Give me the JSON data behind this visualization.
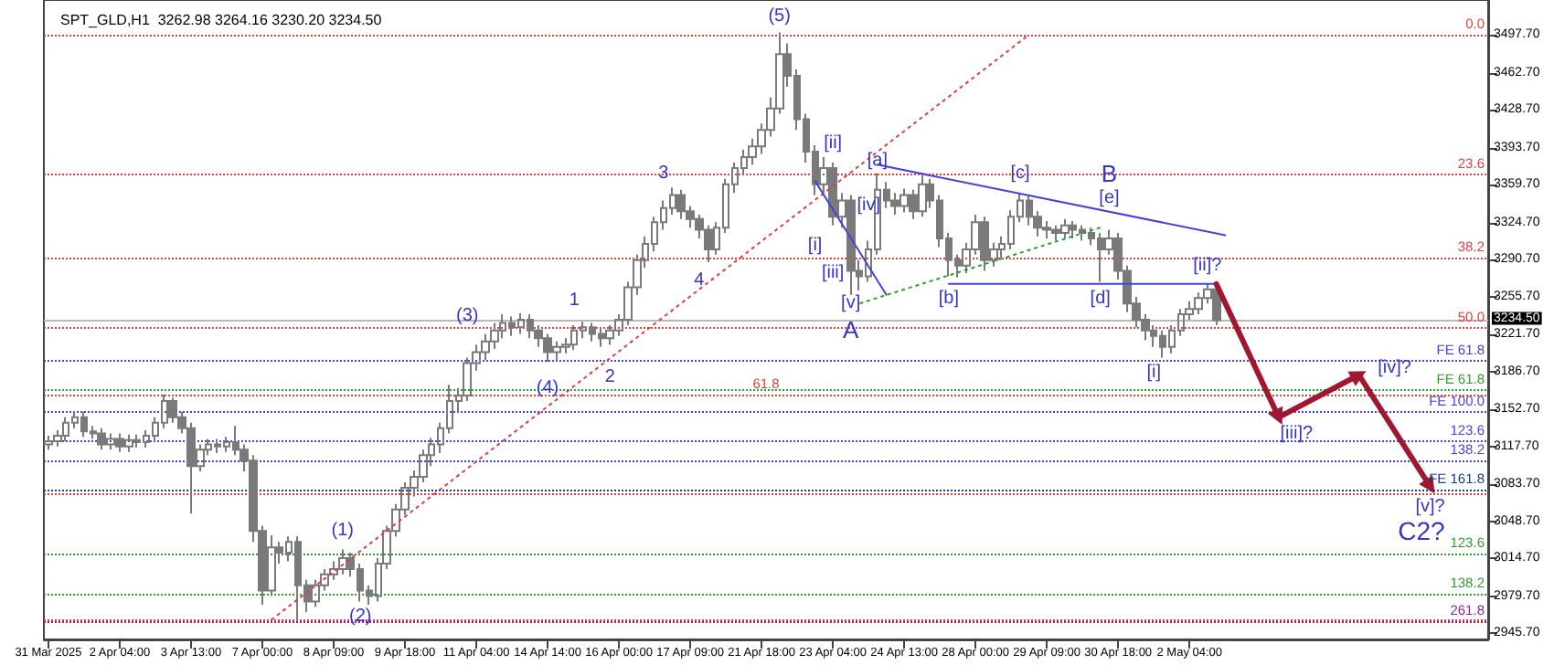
{
  "chart_data": {
    "type": "candlestick",
    "title": "SPT_GLD,H1  3262.98 3264.16 3230.20 3234.50",
    "color": "#7a7a7a",
    "categories": [
      "31 Mar 2025",
      null,
      null,
      null,
      null,
      null,
      null,
      null,
      "2 Apr 04:00",
      null,
      null,
      null,
      null,
      null,
      null,
      null,
      "3 Apr 13:00",
      null,
      null,
      null,
      null,
      null,
      null,
      null,
      "7 Apr 00:00",
      null,
      null,
      null,
      null,
      null,
      null,
      null,
      "8 Apr 09:00",
      null,
      null,
      null,
      null,
      null,
      null,
      null,
      "9 Apr 18:00",
      null,
      null,
      null,
      null,
      null,
      null,
      null,
      "11 Apr 04:00",
      null,
      null,
      null,
      null,
      null,
      null,
      null,
      "14 Apr 14:00",
      null,
      null,
      null,
      null,
      null,
      null,
      null,
      "16 Apr 00:00",
      null,
      null,
      null,
      null,
      null,
      null,
      null,
      "17 Apr 09:00",
      null,
      null,
      null,
      null,
      null,
      null,
      null,
      "21 Apr 18:00",
      null,
      null,
      null,
      null,
      null,
      null,
      null,
      "23 Apr 04:00",
      null,
      null,
      null,
      null,
      null,
      null,
      null,
      "24 Apr 13:00",
      null,
      null,
      null,
      null,
      null,
      null,
      null,
      "28 Apr 00:00",
      null,
      null,
      null,
      null,
      null,
      null,
      null,
      "29 Apr 09:00",
      null,
      null,
      null,
      null,
      null,
      null,
      null,
      "30 Apr 18:00",
      null,
      null,
      null,
      null,
      null,
      null,
      null,
      "2 May 04:00",
      null,
      null,
      null,
      null,
      null,
      null,
      null,
      null,
      null,
      null,
      null,
      null,
      null,
      null,
      null,
      null,
      null,
      null,
      null,
      null,
      null,
      null,
      null,
      null,
      null,
      null,
      null,
      null,
      null,
      null,
      null,
      null,
      null
    ],
    "ohlc": [
      [
        3120,
        3128,
        3115,
        3123
      ],
      [
        3123,
        3133,
        3118,
        3128
      ],
      [
        3128,
        3145,
        3123,
        3140
      ],
      [
        3140,
        3150,
        3135,
        3145
      ],
      [
        3145,
        3150,
        3127,
        3132
      ],
      [
        3132,
        3137,
        3125,
        3130
      ],
      [
        3130,
        3135,
        3115,
        3120
      ],
      [
        3120,
        3130,
        3115,
        3125
      ],
      [
        3125,
        3130,
        3113,
        3118
      ],
      [
        3118,
        3129,
        3113,
        3124
      ],
      [
        3124,
        3129,
        3117,
        3122
      ],
      [
        3122,
        3133,
        3117,
        3128
      ],
      [
        3128,
        3145,
        3123,
        3140
      ],
      [
        3140,
        3166,
        3135,
        3160
      ],
      [
        3160,
        3163,
        3140,
        3145
      ],
      [
        3145,
        3150,
        3130,
        3135
      ],
      [
        3135,
        3140,
        3056,
        3100
      ],
      [
        3100,
        3120,
        3095,
        3115
      ],
      [
        3115,
        3125,
        3110,
        3120
      ],
      [
        3120,
        3125,
        3112,
        3118
      ],
      [
        3118,
        3127,
        3113,
        3122
      ],
      [
        3122,
        3137,
        3110,
        3115
      ],
      [
        3115,
        3120,
        3095,
        3105
      ],
      [
        3105,
        3110,
        3030,
        3040
      ],
      [
        3040,
        3045,
        2972,
        2985
      ],
      [
        2985,
        3036,
        2980,
        3025
      ],
      [
        3025,
        3030,
        3010,
        3020
      ],
      [
        3020,
        3035,
        3012,
        3030
      ],
      [
        3030,
        3035,
        2957,
        2990
      ],
      [
        2990,
        2995,
        2965,
        2975
      ],
      [
        2975,
        2995,
        2970,
        2990
      ],
      [
        2990,
        3005,
        2985,
        3000
      ],
      [
        3000,
        3012,
        2995,
        3005
      ],
      [
        3005,
        3023,
        3000,
        3015
      ],
      [
        3015,
        3020,
        2998,
        3005
      ],
      [
        3005,
        3010,
        2975,
        2985
      ],
      [
        2985,
        2990,
        2972,
        2980
      ],
      [
        2980,
        3015,
        2975,
        3010
      ],
      [
        3010,
        3045,
        3005,
        3040
      ],
      [
        3040,
        3065,
        3035,
        3060
      ],
      [
        3060,
        3085,
        3055,
        3080
      ],
      [
        3080,
        3096,
        3072,
        3090
      ],
      [
        3090,
        3115,
        3085,
        3110
      ],
      [
        3110,
        3126,
        3100,
        3120
      ],
      [
        3120,
        3140,
        3112,
        3135
      ],
      [
        3135,
        3175,
        3130,
        3160
      ],
      [
        3160,
        3172,
        3150,
        3165
      ],
      [
        3165,
        3200,
        3160,
        3195
      ],
      [
        3195,
        3212,
        3188,
        3205
      ],
      [
        3205,
        3222,
        3198,
        3215
      ],
      [
        3215,
        3232,
        3208,
        3225
      ],
      [
        3225,
        3240,
        3218,
        3232
      ],
      [
        3232,
        3238,
        3220,
        3228
      ],
      [
        3228,
        3241,
        3222,
        3235
      ],
      [
        3235,
        3240,
        3218,
        3225
      ],
      [
        3225,
        3230,
        3210,
        3218
      ],
      [
        3218,
        3222,
        3196,
        3205
      ],
      [
        3205,
        3215,
        3198,
        3210
      ],
      [
        3210,
        3218,
        3204,
        3212
      ],
      [
        3212,
        3230,
        3207,
        3225
      ],
      [
        3225,
        3233,
        3218,
        3228
      ],
      [
        3228,
        3232,
        3215,
        3222
      ],
      [
        3222,
        3228,
        3210,
        3218
      ],
      [
        3218,
        3230,
        3212,
        3225
      ],
      [
        3225,
        3240,
        3220,
        3235
      ],
      [
        3235,
        3270,
        3230,
        3265
      ],
      [
        3265,
        3295,
        3258,
        3290
      ],
      [
        3290,
        3312,
        3283,
        3305
      ],
      [
        3305,
        3330,
        3298,
        3325
      ],
      [
        3325,
        3345,
        3318,
        3338
      ],
      [
        3338,
        3357,
        3332,
        3350
      ],
      [
        3350,
        3355,
        3328,
        3335
      ],
      [
        3335,
        3340,
        3320,
        3328
      ],
      [
        3328,
        3332,
        3310,
        3318
      ],
      [
        3318,
        3322,
        3288,
        3300
      ],
      [
        3300,
        3325,
        3295,
        3320
      ],
      [
        3320,
        3365,
        3315,
        3360
      ],
      [
        3360,
        3380,
        3352,
        3375
      ],
      [
        3375,
        3392,
        3368,
        3385
      ],
      [
        3385,
        3402,
        3378,
        3395
      ],
      [
        3395,
        3416,
        3388,
        3410
      ],
      [
        3410,
        3440,
        3404,
        3430
      ],
      [
        3430,
        3500,
        3425,
        3480
      ],
      [
        3480,
        3490,
        3450,
        3460
      ],
      [
        3460,
        3466,
        3410,
        3420
      ],
      [
        3420,
        3425,
        3380,
        3390
      ],
      [
        3390,
        3396,
        3350,
        3360
      ],
      [
        3360,
        3385,
        3352,
        3375
      ],
      [
        3375,
        3380,
        3322,
        3330
      ],
      [
        3330,
        3352,
        3320,
        3345
      ],
      [
        3345,
        3350,
        3258,
        3280
      ],
      [
        3280,
        3290,
        3262,
        3275
      ],
      [
        3275,
        3308,
        3270,
        3300
      ],
      [
        3300,
        3370,
        3295,
        3355
      ],
      [
        3355,
        3362,
        3338,
        3345
      ],
      [
        3345,
        3352,
        3332,
        3340
      ],
      [
        3340,
        3356,
        3334,
        3350
      ],
      [
        3350,
        3355,
        3328,
        3335
      ],
      [
        3335,
        3368,
        3330,
        3360
      ],
      [
        3360,
        3365,
        3338,
        3345
      ],
      [
        3345,
        3350,
        3302,
        3310
      ],
      [
        3310,
        3315,
        3275,
        3290
      ],
      [
        3290,
        3295,
        3274,
        3285
      ],
      [
        3285,
        3306,
        3278,
        3300
      ],
      [
        3300,
        3332,
        3295,
        3325
      ],
      [
        3325,
        3330,
        3280,
        3290
      ],
      [
        3290,
        3306,
        3284,
        3300
      ],
      [
        3300,
        3312,
        3292,
        3305
      ],
      [
        3305,
        3336,
        3300,
        3330
      ],
      [
        3330,
        3352,
        3325,
        3345
      ],
      [
        3345,
        3350,
        3322,
        3330
      ],
      [
        3330,
        3335,
        3312,
        3320
      ],
      [
        3320,
        3326,
        3310,
        3318
      ],
      [
        3318,
        3322,
        3308,
        3315
      ],
      [
        3315,
        3328,
        3310,
        3322
      ],
      [
        3322,
        3326,
        3310,
        3318
      ],
      [
        3318,
        3322,
        3308,
        3315
      ],
      [
        3315,
        3320,
        3304,
        3310
      ],
      [
        3310,
        3315,
        3270,
        3300
      ],
      [
        3300,
        3318,
        3295,
        3310
      ],
      [
        3310,
        3315,
        3272,
        3280
      ],
      [
        3280,
        3285,
        3242,
        3250
      ],
      [
        3250,
        3256,
        3228,
        3235
      ],
      [
        3235,
        3240,
        3216,
        3225
      ],
      [
        3225,
        3230,
        3210,
        3220
      ],
      [
        3220,
        3225,
        3200,
        3210
      ],
      [
        3210,
        3230,
        3204,
        3225
      ],
      [
        3225,
        3245,
        3220,
        3240
      ],
      [
        3240,
        3252,
        3235,
        3245
      ],
      [
        3245,
        3260,
        3240,
        3255
      ],
      [
        3255,
        3268,
        3250,
        3262.98
      ],
      [
        3262.98,
        3264.16,
        3230.2,
        3234.5
      ],
      null,
      null,
      null,
      null,
      null,
      null,
      null,
      null,
      null,
      null,
      null,
      null,
      null,
      null,
      null,
      null,
      null,
      null,
      null,
      null,
      null,
      null,
      null,
      null,
      null,
      null,
      null,
      null,
      null,
      null
    ],
    "series": [
      {
        "type": "line",
        "color": "#e04040",
        "line_style": "dotted",
        "marker": "none",
        "values": [
          null,
          null,
          null,
          null,
          null,
          null,
          null,
          null,
          null,
          null,
          null,
          null,
          null,
          null,
          null,
          null,
          null,
          null,
          null,
          null,
          null,
          null,
          null,
          null,
          null,
          2958,
          null,
          null,
          null,
          null,
          null,
          null,
          null,
          null,
          null,
          null,
          null,
          null,
          null,
          null,
          null,
          null,
          null,
          null,
          null,
          null,
          null,
          null,
          null,
          null,
          null,
          null,
          null,
          null,
          null,
          null,
          null,
          null,
          null,
          null,
          null,
          null,
          null,
          null,
          null,
          null,
          null,
          null,
          null,
          null,
          null,
          null,
          null,
          null,
          null,
          null,
          null,
          null,
          null,
          null,
          null,
          null,
          null,
          null,
          null,
          null,
          null,
          null,
          null,
          null,
          null,
          null,
          null,
          null,
          null,
          null,
          null,
          null,
          null,
          null,
          null,
          null,
          null,
          null,
          null,
          null,
          null,
          null,
          null,
          null,
          3498,
          null,
          null,
          null,
          null,
          null,
          null,
          null,
          null,
          null,
          null,
          null,
          null,
          null,
          null,
          null,
          null,
          null,
          null,
          null,
          null,
          null,
          null,
          null,
          null,
          null,
          null,
          null,
          null,
          null,
          null,
          null,
          null,
          null,
          null,
          null,
          null,
          null,
          null,
          null,
          null,
          null,
          null,
          null,
          null,
          null,
          null,
          null,
          null,
          null,
          null,
          null
        ]
      },
      {
        "type": "line",
        "color": "#4444dd",
        "line_style": "solid",
        "marker": "none",
        "values": [
          null,
          null,
          null,
          null,
          null,
          null,
          null,
          null,
          null,
          null,
          null,
          null,
          null,
          null,
          null,
          null,
          null,
          null,
          null,
          null,
          null,
          null,
          null,
          null,
          null,
          null,
          null,
          null,
          null,
          null,
          null,
          null,
          null,
          null,
          null,
          null,
          null,
          null,
          null,
          null,
          null,
          null,
          null,
          null,
          null,
          null,
          null,
          null,
          null,
          null,
          null,
          null,
          null,
          null,
          null,
          null,
          null,
          null,
          null,
          null,
          null,
          null,
          null,
          null,
          null,
          null,
          null,
          null,
          null,
          null,
          null,
          null,
          null,
          null,
          null,
          null,
          null,
          null,
          null,
          null,
          null,
          null,
          null,
          null,
          null,
          null,
          null,
          null,
          null,
          null,
          null,
          null,
          null,
          3378,
          null,
          null,
          null,
          null,
          null,
          null,
          null,
          null,
          null,
          null,
          null,
          null,
          null,
          null,
          null,
          null,
          null,
          null,
          null,
          null,
          null,
          null,
          null,
          null,
          null,
          null,
          null,
          null,
          null,
          null,
          null,
          null,
          null,
          null,
          null,
          null,
          null,
          null,
          3313,
          null,
          null,
          null,
          null,
          null,
          null,
          null,
          null,
          null,
          null,
          null,
          null,
          null,
          null,
          null,
          null,
          null,
          null,
          null,
          null,
          null,
          null,
          null,
          null,
          null,
          null,
          null,
          null,
          null
        ]
      },
      {
        "type": "line",
        "color": "#4444dd",
        "line_style": "solid",
        "marker": "none",
        "values": [
          null,
          null,
          null,
          null,
          null,
          null,
          null,
          null,
          null,
          null,
          null,
          null,
          null,
          null,
          null,
          null,
          null,
          null,
          null,
          null,
          null,
          null,
          null,
          null,
          null,
          null,
          null,
          null,
          null,
          null,
          null,
          null,
          null,
          null,
          null,
          null,
          null,
          null,
          null,
          null,
          null,
          null,
          null,
          null,
          null,
          null,
          null,
          null,
          null,
          null,
          null,
          null,
          null,
          null,
          null,
          null,
          null,
          null,
          null,
          null,
          null,
          null,
          null,
          null,
          null,
          null,
          null,
          null,
          null,
          null,
          null,
          null,
          null,
          null,
          null,
          null,
          null,
          null,
          null,
          null,
          null,
          null,
          null,
          null,
          null,
          null,
          null,
          null,
          null,
          null,
          null,
          null,
          null,
          null,
          null,
          null,
          null,
          null,
          null,
          null,
          null,
          3268,
          null,
          null,
          null,
          null,
          null,
          null,
          null,
          null,
          null,
          null,
          null,
          null,
          null,
          null,
          null,
          null,
          null,
          null,
          null,
          null,
          null,
          null,
          null,
          null,
          null,
          null,
          null,
          null,
          null,
          3268,
          null,
          null,
          null,
          null,
          null,
          null,
          null,
          null,
          null,
          null,
          null,
          null,
          null,
          null,
          null,
          null,
          null,
          null,
          null,
          null,
          null,
          null,
          null,
          null,
          null,
          null,
          null,
          null,
          null,
          null
        ]
      },
      {
        "type": "line",
        "color": "#2e9e2e",
        "line_style": "dotted",
        "marker": "none",
        "values": [
          null,
          null,
          null,
          null,
          null,
          null,
          null,
          null,
          null,
          null,
          null,
          null,
          null,
          null,
          null,
          null,
          null,
          null,
          null,
          null,
          null,
          null,
          null,
          null,
          null,
          null,
          null,
          null,
          null,
          null,
          null,
          null,
          null,
          null,
          null,
          null,
          null,
          null,
          null,
          null,
          null,
          null,
          null,
          null,
          null,
          null,
          null,
          null,
          null,
          null,
          null,
          null,
          null,
          null,
          null,
          null,
          null,
          null,
          null,
          null,
          null,
          null,
          null,
          null,
          null,
          null,
          null,
          null,
          null,
          null,
          null,
          null,
          null,
          null,
          null,
          null,
          null,
          null,
          null,
          null,
          null,
          null,
          null,
          null,
          null,
          null,
          null,
          null,
          null,
          null,
          null,
          3250,
          null,
          null,
          null,
          null,
          null,
          null,
          null,
          null,
          null,
          null,
          null,
          null,
          null,
          null,
          null,
          null,
          null,
          null,
          null,
          null,
          null,
          null,
          null,
          null,
          null,
          null,
          3320,
          null,
          null,
          null,
          null,
          null,
          null,
          null,
          null,
          null,
          null,
          null,
          null,
          null,
          null,
          null,
          null,
          null,
          null,
          null,
          null,
          null,
          null,
          null,
          null,
          null,
          null,
          null,
          null,
          null,
          null,
          null,
          null,
          null,
          null,
          null,
          null,
          null,
          null,
          null,
          null,
          null,
          null,
          null
        ]
      },
      {
        "type": "line",
        "color": "#4444dd",
        "line_style": "solid",
        "marker": "none",
        "values": [
          null,
          null,
          null,
          null,
          null,
          null,
          null,
          null,
          null,
          null,
          null,
          null,
          null,
          null,
          null,
          null,
          null,
          null,
          null,
          null,
          null,
          null,
          null,
          null,
          null,
          null,
          null,
          null,
          null,
          null,
          null,
          null,
          null,
          null,
          null,
          null,
          null,
          null,
          null,
          null,
          null,
          null,
          null,
          null,
          null,
          null,
          null,
          null,
          null,
          null,
          null,
          null,
          null,
          null,
          null,
          null,
          null,
          null,
          null,
          null,
          null,
          null,
          null,
          null,
          null,
          null,
          null,
          null,
          null,
          null,
          null,
          null,
          null,
          null,
          null,
          null,
          null,
          null,
          null,
          null,
          null,
          null,
          null,
          null,
          null,
          null,
          3363,
          null,
          null,
          null,
          null,
          null,
          null,
          null,
          3258,
          null,
          null,
          null,
          null,
          null,
          null,
          null,
          null,
          null,
          null,
          null,
          null,
          null,
          null,
          null,
          null,
          null,
          null,
          null,
          null,
          null,
          null,
          null,
          null,
          null,
          null,
          null,
          null,
          null,
          null,
          null,
          null,
          null,
          null,
          null,
          null,
          null,
          null,
          null,
          null,
          null,
          null,
          null,
          null,
          null,
          null,
          null,
          null,
          null,
          null,
          null,
          null,
          null,
          null,
          null,
          null,
          null,
          null,
          null,
          null,
          null,
          null,
          null,
          null,
          null,
          null,
          null
        ]
      },
      {
        "type": "line",
        "color": "#a01830",
        "line_style": "solid",
        "marker": "triangle",
        "values": [
          null,
          null,
          null,
          null,
          null,
          null,
          null,
          null,
          null,
          null,
          null,
          null,
          null,
          null,
          null,
          null,
          null,
          null,
          null,
          null,
          null,
          null,
          null,
          null,
          null,
          null,
          null,
          null,
          null,
          null,
          null,
          null,
          null,
          null,
          null,
          null,
          null,
          null,
          null,
          null,
          null,
          null,
          null,
          null,
          null,
          null,
          null,
          null,
          null,
          null,
          null,
          null,
          null,
          null,
          null,
          null,
          null,
          null,
          null,
          null,
          null,
          null,
          null,
          null,
          null,
          null,
          null,
          null,
          null,
          null,
          null,
          null,
          null,
          null,
          null,
          null,
          null,
          null,
          null,
          null,
          null,
          null,
          null,
          null,
          null,
          null,
          null,
          null,
          null,
          null,
          null,
          null,
          null,
          null,
          null,
          null,
          null,
          null,
          null,
          null,
          null,
          null,
          null,
          null,
          null,
          null,
          null,
          null,
          null,
          null,
          null,
          null,
          null,
          null,
          null,
          null,
          null,
          null,
          null,
          null,
          null,
          null,
          null,
          null,
          null,
          null,
          null,
          null,
          null,
          null,
          null,
          3268,
          null,
          null,
          null,
          null,
          null,
          null,
          3145,
          null,
          null,
          null,
          null,
          null,
          null,
          null,
          null,
          3184,
          null,
          null,
          null,
          null,
          null,
          null,
          null,
          3081,
          null,
          null,
          null,
          null,
          null,
          null
        ]
      }
    ],
    "ylim": [
      2940,
      3530
    ],
    "yticks": [
      {
        "value": 2945.7,
        "label": "2945.70"
      },
      {
        "value": 2979.7,
        "label": "2979.70"
      },
      {
        "value": 3014.7,
        "label": "3014.70"
      },
      {
        "value": 3048.7,
        "label": "3048.70"
      },
      {
        "value": 3083.7,
        "label": "3083.70"
      },
      {
        "value": 3117.7,
        "label": "3117.70"
      },
      {
        "value": 3152.7,
        "label": "3152.70"
      },
      {
        "value": 3186.7,
        "label": "3186.70"
      },
      {
        "value": 3221.7,
        "label": "3221.70"
      },
      {
        "value": 3255.7,
        "label": "3255.70"
      },
      {
        "value": 3290.7,
        "label": "3290.70"
      },
      {
        "value": 3324.7,
        "label": "3324.70"
      },
      {
        "value": 3359.7,
        "label": "3359.70"
      },
      {
        "value": 3393.7,
        "label": "3393.70"
      },
      {
        "value": 3428.7,
        "label": "3428.70"
      },
      {
        "value": 3462.7,
        "label": "3462.70"
      },
      {
        "value": 3497.7,
        "label": "3497.70"
      }
    ],
    "ref_lines": [
      {
        "axis": "y",
        "value": 3497.7,
        "label": null,
        "color": "#e04040",
        "line_style": "dotted"
      },
      {
        "axis": "y",
        "value": 3369,
        "label": null,
        "color": "#e04040",
        "line_style": "dotted"
      },
      {
        "axis": "y",
        "value": 3292,
        "label": null,
        "color": "#e04040",
        "line_style": "dotted"
      },
      {
        "axis": "y",
        "value": 3227.5,
        "label": null,
        "color": "#e04040",
        "line_style": "dotted"
      },
      {
        "axis": "y",
        "value": 3165.5,
        "label": null,
        "color": "#e04040",
        "line_style": "dotted"
      },
      {
        "axis": "y",
        "value": 3074,
        "label": null,
        "color": "#e04040",
        "line_style": "dotted"
      },
      {
        "axis": "y",
        "value": 2958,
        "label": null,
        "color": "#e04040",
        "line_style": "dotted"
      },
      {
        "axis": "y",
        "value": 3197,
        "label": null,
        "color": "#4444dd",
        "line_style": "dotted"
      },
      {
        "axis": "y",
        "value": 3150,
        "label": null,
        "color": "#4444dd",
        "line_style": "dotted"
      },
      {
        "axis": "y",
        "value": 3123,
        "label": null,
        "color": "#4444dd",
        "line_style": "dotted"
      },
      {
        "axis": "y",
        "value": 3105,
        "label": null,
        "color": "#4444dd",
        "line_style": "dotted"
      },
      {
        "axis": "y",
        "value": 3078,
        "label": null,
        "color": "#1a3a8a",
        "line_style": "dotted"
      },
      {
        "axis": "y",
        "value": 3170,
        "label": null,
        "color": "#2e9e2e",
        "line_style": "dotted"
      },
      {
        "axis": "y",
        "value": 3019.5,
        "label": null,
        "color": "#2e9e2e",
        "line_style": "dotted"
      },
      {
        "axis": "y",
        "value": 2982.5,
        "label": null,
        "color": "#2e9e2e",
        "line_style": "dotted"
      },
      {
        "axis": "y",
        "value": 2957,
        "label": null,
        "color": "#9020a0",
        "line_style": "dotted"
      },
      {
        "axis": "y",
        "value": 3234.5,
        "label": "3234.50",
        "color": "#b8b8b8",
        "line_style": "solid"
      }
    ],
    "annotations": [
      "(1)",
      "(2)",
      "(3)",
      "(4)",
      "(5)",
      "1",
      "2",
      "3",
      "4",
      "[i]",
      "[ii]",
      "[iii]",
      "[iv]",
      "[v]",
      "A",
      "[a]",
      "[b]",
      "[c]",
      "[d]",
      "[e]",
      "B",
      "[i]",
      "[ii]?",
      "[iii]?",
      "[iv]?",
      "[v]?",
      "C2?",
      {
        "text": "0.0",
        "y": 3497.7
      },
      {
        "text": "23.6",
        "y": 3369
      },
      {
        "text": "38.2",
        "y": 3292
      },
      {
        "text": "50.0",
        "y": 3227.5
      },
      {
        "text": "61.8",
        "y": 3165.5
      },
      {
        "text": "FE 61.8",
        "y": 3197
      },
      {
        "text": "FE 100.0",
        "y": 3150
      },
      {
        "text": "123.6",
        "y": 3123
      },
      {
        "text": "138.2",
        "y": 3105
      },
      {
        "text": "FE 161.8",
        "y": 3078
      },
      {
        "text": "FE 61.8",
        "y": 3170
      },
      {
        "text": "123.6",
        "y": 3019.5
      },
      {
        "text": "138.2",
        "y": 2982.5
      },
      {
        "text": "261.8",
        "y": 2957
      }
    ]
  }
}
